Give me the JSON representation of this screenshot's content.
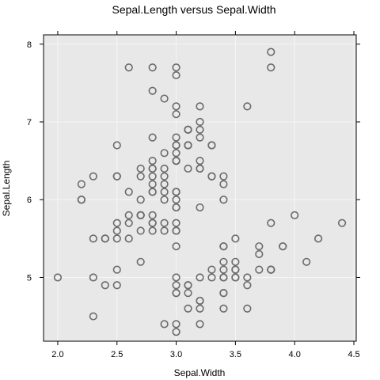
{
  "colors": {
    "panel_bg": "#e8e8e8",
    "grid": "#f5f5f5",
    "point": "#6b6b6b",
    "frame": "#000000"
  },
  "chart_data": {
    "type": "scatter",
    "title": "Sepal.Length versus Sepal.Width",
    "xlabel": "Sepal.Width",
    "ylabel": "Sepal.Length",
    "xlim": [
      1.88,
      4.52
    ],
    "ylim": [
      4.18,
      8.12
    ],
    "xticks": [
      2.0,
      2.5,
      3.0,
      3.5,
      4.0,
      4.5
    ],
    "xtick_labels": [
      "2.0",
      "2.5",
      "3.0",
      "3.5",
      "4.0",
      "4.5"
    ],
    "yticks": [
      5,
      6,
      7,
      8
    ],
    "ytick_labels": [
      "5",
      "6",
      "7",
      "8"
    ],
    "grid": true,
    "marker": "open-circle",
    "points": [
      [
        3.5,
        5.1
      ],
      [
        3.0,
        4.9
      ],
      [
        3.2,
        4.7
      ],
      [
        3.1,
        4.6
      ],
      [
        3.6,
        5.0
      ],
      [
        3.9,
        5.4
      ],
      [
        3.4,
        4.6
      ],
      [
        3.4,
        5.0
      ],
      [
        2.9,
        4.4
      ],
      [
        3.1,
        4.9
      ],
      [
        3.7,
        5.4
      ],
      [
        3.4,
        4.8
      ],
      [
        3.0,
        4.8
      ],
      [
        3.0,
        4.3
      ],
      [
        4.0,
        5.8
      ],
      [
        4.4,
        5.7
      ],
      [
        3.9,
        5.4
      ],
      [
        3.5,
        5.1
      ],
      [
        3.8,
        5.7
      ],
      [
        3.8,
        5.1
      ],
      [
        3.4,
        5.4
      ],
      [
        3.7,
        5.1
      ],
      [
        3.6,
        4.6
      ],
      [
        3.3,
        5.1
      ],
      [
        3.4,
        4.8
      ],
      [
        3.0,
        5.0
      ],
      [
        3.4,
        5.0
      ],
      [
        3.5,
        5.2
      ],
      [
        3.4,
        5.2
      ],
      [
        3.2,
        4.7
      ],
      [
        3.1,
        4.8
      ],
      [
        3.4,
        5.4
      ],
      [
        4.1,
        5.2
      ],
      [
        4.2,
        5.5
      ],
      [
        3.1,
        4.9
      ],
      [
        3.2,
        5.0
      ],
      [
        3.5,
        5.5
      ],
      [
        3.6,
        4.9
      ],
      [
        3.0,
        4.4
      ],
      [
        3.4,
        5.1
      ],
      [
        3.5,
        5.0
      ],
      [
        2.3,
        4.5
      ],
      [
        3.2,
        4.4
      ],
      [
        3.5,
        5.0
      ],
      [
        3.8,
        5.1
      ],
      [
        3.0,
        4.8
      ],
      [
        3.8,
        5.1
      ],
      [
        3.2,
        4.6
      ],
      [
        3.7,
        5.3
      ],
      [
        3.3,
        5.0
      ],
      [
        3.2,
        7.0
      ],
      [
        3.2,
        6.4
      ],
      [
        3.1,
        6.9
      ],
      [
        2.3,
        5.5
      ],
      [
        2.8,
        6.5
      ],
      [
        2.8,
        5.7
      ],
      [
        3.3,
        6.3
      ],
      [
        2.4,
        4.9
      ],
      [
        2.9,
        6.6
      ],
      [
        2.7,
        5.2
      ],
      [
        2.0,
        5.0
      ],
      [
        3.0,
        5.9
      ],
      [
        2.2,
        6.0
      ],
      [
        2.9,
        6.1
      ],
      [
        2.9,
        5.6
      ],
      [
        3.1,
        6.7
      ],
      [
        3.0,
        5.6
      ],
      [
        2.7,
        5.8
      ],
      [
        2.2,
        6.2
      ],
      [
        2.5,
        5.6
      ],
      [
        3.2,
        5.9
      ],
      [
        2.8,
        6.1
      ],
      [
        2.5,
        6.3
      ],
      [
        2.8,
        6.1
      ],
      [
        2.9,
        6.4
      ],
      [
        3.0,
        6.6
      ],
      [
        2.8,
        6.8
      ],
      [
        3.0,
        6.7
      ],
      [
        2.9,
        6.0
      ],
      [
        2.6,
        5.7
      ],
      [
        2.4,
        5.5
      ],
      [
        2.4,
        5.5
      ],
      [
        2.7,
        5.8
      ],
      [
        2.7,
        6.0
      ],
      [
        3.0,
        5.4
      ],
      [
        3.4,
        6.0
      ],
      [
        3.1,
        6.7
      ],
      [
        2.3,
        6.3
      ],
      [
        3.0,
        5.6
      ],
      [
        2.5,
        5.5
      ],
      [
        2.6,
        5.5
      ],
      [
        3.0,
        6.1
      ],
      [
        2.6,
        5.8
      ],
      [
        2.3,
        5.0
      ],
      [
        2.7,
        5.6
      ],
      [
        3.0,
        5.7
      ],
      [
        2.9,
        5.7
      ],
      [
        2.9,
        6.2
      ],
      [
        2.5,
        5.1
      ],
      [
        2.8,
        5.7
      ],
      [
        3.3,
        6.3
      ],
      [
        2.7,
        5.8
      ],
      [
        3.0,
        7.1
      ],
      [
        2.9,
        6.3
      ],
      [
        3.0,
        6.5
      ],
      [
        3.0,
        7.6
      ],
      [
        2.5,
        4.9
      ],
      [
        2.9,
        7.3
      ],
      [
        2.5,
        6.7
      ],
      [
        3.6,
        7.2
      ],
      [
        3.2,
        6.5
      ],
      [
        2.7,
        6.4
      ],
      [
        3.0,
        6.8
      ],
      [
        2.5,
        5.7
      ],
      [
        2.8,
        5.8
      ],
      [
        3.2,
        6.4
      ],
      [
        3.0,
        6.5
      ],
      [
        3.8,
        7.7
      ],
      [
        2.6,
        7.7
      ],
      [
        2.2,
        6.0
      ],
      [
        3.2,
        6.9
      ],
      [
        2.8,
        5.6
      ],
      [
        2.8,
        7.7
      ],
      [
        2.7,
        6.3
      ],
      [
        3.3,
        6.7
      ],
      [
        3.2,
        7.2
      ],
      [
        2.8,
        6.2
      ],
      [
        3.0,
        6.1
      ],
      [
        2.8,
        6.4
      ],
      [
        3.0,
        7.2
      ],
      [
        2.8,
        7.4
      ],
      [
        3.8,
        7.9
      ],
      [
        2.8,
        6.4
      ],
      [
        2.8,
        6.3
      ],
      [
        2.6,
        6.1
      ],
      [
        3.0,
        7.7
      ],
      [
        3.4,
        6.3
      ],
      [
        3.1,
        6.4
      ],
      [
        3.0,
        6.0
      ],
      [
        3.1,
        6.9
      ],
      [
        3.1,
        6.7
      ],
      [
        3.1,
        6.9
      ],
      [
        2.7,
        5.8
      ],
      [
        3.2,
        6.8
      ],
      [
        3.3,
        6.7
      ],
      [
        3.0,
        6.7
      ],
      [
        2.5,
        6.3
      ],
      [
        3.0,
        6.5
      ],
      [
        3.4,
        6.2
      ],
      [
        3.0,
        5.9
      ]
    ]
  }
}
